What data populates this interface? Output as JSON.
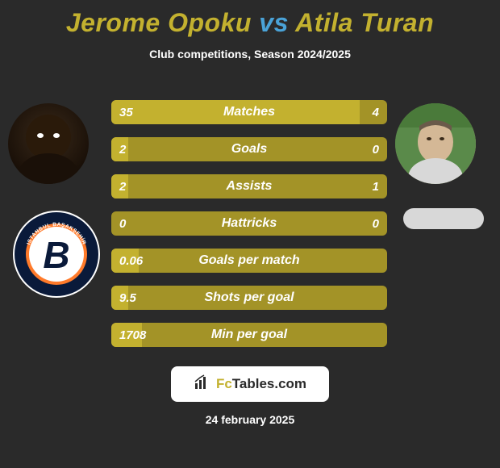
{
  "title_left": "Jerome Opoku",
  "title_vs": "vs",
  "title_right": "Atila Turan",
  "title_color_left": "#c3b12f",
  "title_color_vs": "#4aa3d8",
  "title_color_right": "#c3b12f",
  "subtitle": "Club competitions, Season 2024/2025",
  "background_color": "#2a2a2a",
  "bar_base_color": "#a39327",
  "bar_highlight_color": "#c3b12f",
  "text_color": "#ffffff",
  "bars": [
    {
      "label": "Matches",
      "left": "35",
      "right": "4",
      "highlight_ratio": 0.9
    },
    {
      "label": "Goals",
      "left": "2",
      "right": "0",
      "highlight_ratio": 0.06
    },
    {
      "label": "Assists",
      "left": "2",
      "right": "1",
      "highlight_ratio": 0.06
    },
    {
      "label": "Hattricks",
      "left": "0",
      "right": "0",
      "highlight_ratio": 0.0
    },
    {
      "label": "Goals per match",
      "left": "0.06",
      "right": "",
      "highlight_ratio": 0.1
    },
    {
      "label": "Shots per goal",
      "left": "9.5",
      "right": "",
      "highlight_ratio": 0.06
    },
    {
      "label": "Min per goal",
      "left": "1708",
      "right": "",
      "highlight_ratio": 0.11
    }
  ],
  "brand_text_1": "Fc",
  "brand_text_2": "Tables",
  "brand_text_3": ".com",
  "footer_date": "24 february 2025",
  "club_left": {
    "outer_color": "#0a1a3a",
    "ring_color": "#ff7a2a",
    "inner_color": "#ffffff",
    "letter": "B",
    "letter_color": "#0a1a3a",
    "top_text": "ISTANBUL BAŞAKŞEHİR"
  }
}
